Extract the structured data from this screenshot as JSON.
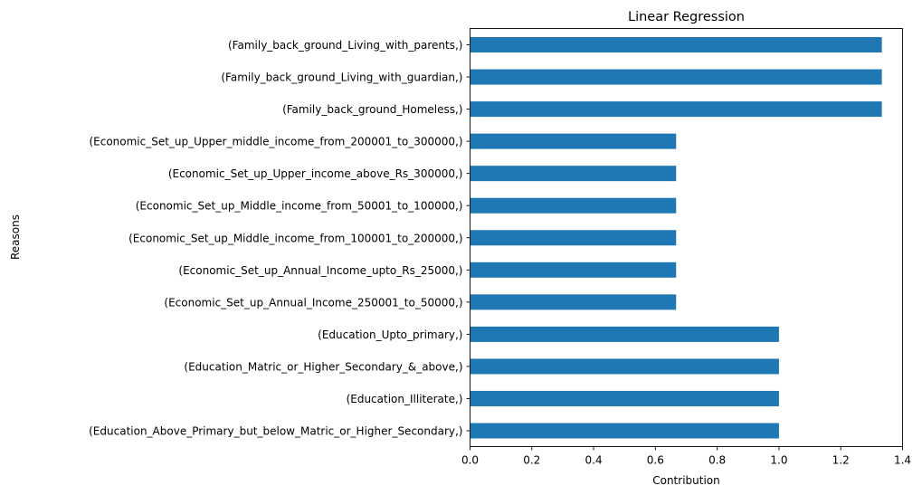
{
  "chart_data": {
    "type": "bar",
    "orientation": "horizontal",
    "title": "Linear Regression",
    "xlabel": "Contribution",
    "ylabel": "Reasons",
    "xlim": [
      0,
      1.4
    ],
    "xticks": [
      "0.0",
      "0.2",
      "0.4",
      "0.6",
      "0.8",
      "1.0",
      "1.2",
      "1.4"
    ],
    "xtick_values": [
      0,
      0.2,
      0.4,
      0.6,
      0.8,
      1.0,
      1.2,
      1.4
    ],
    "grid": false,
    "legend": "none",
    "bar_color": "#1f77b4",
    "categories": [
      "(Family_back_ground_Living_with_parents,)",
      "(Family_back_ground_Living_with_guardian,)",
      "(Family_back_ground_Homeless,)",
      "(Economic_Set_up_Upper_middle_income_from_200001_to_300000,)",
      "(Economic_Set_up_Upper_income_above_Rs_300000,)",
      "(Economic_Set_up_Middle_income_from_50001_to_100000,)",
      "(Economic_Set_up_Middle_income_from_100001_to_200000,)",
      "(Economic_Set_up_Annual_Income_upto_Rs_25000,)",
      "(Economic_Set_up_Annual_Income_250001_to_50000,)",
      "(Education_Upto_primary,)",
      "(Education_Matric_or_Higher_Secondary_&_above,)",
      "(Education_Illiterate,)",
      "(Education_Above_Primary_but_below_Matric_or_Higher_Secondary,)"
    ],
    "values": [
      1.333,
      1.333,
      1.333,
      0.667,
      0.667,
      0.667,
      0.667,
      0.667,
      0.667,
      1.0,
      1.0,
      1.0,
      1.0
    ]
  }
}
